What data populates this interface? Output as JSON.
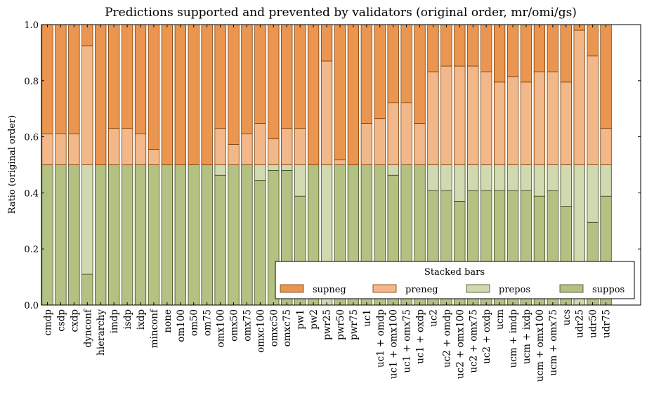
{
  "chart_data": {
    "type": "bar",
    "stacked": true,
    "title": "Predictions supported and prevented by validators (original order, mr/omi/gs)",
    "xlabel": "",
    "ylabel": "Ratio (original order)",
    "ylim": [
      0,
      1
    ],
    "yticks": [
      "0.0",
      "0.2",
      "0.4",
      "0.6",
      "0.8",
      "1.0"
    ],
    "grid": false,
    "legend": {
      "title": "Stacked bars",
      "placement": "bottom-right",
      "entries": [
        "supneg",
        "preneg",
        "prepos",
        "suppos"
      ]
    },
    "categories": [
      "cmdp",
      "csdp",
      "cxdp",
      "dynconf",
      "hierarchy",
      "imdp",
      "isdp",
      "ixdp",
      "minconf",
      "none",
      "om100",
      "om50",
      "om75",
      "omx100",
      "omx50",
      "omx75",
      "omxc100",
      "omxc50",
      "omxc75",
      "pw1",
      "pw2",
      "pwr25",
      "pwr50",
      "pwr75",
      "uc1",
      "uc1 + omdp",
      "uc1 + omx100",
      "uc1 + omx75",
      "uc1 + oxdp",
      "uc2",
      "uc2 + omdp",
      "uc2 + omx100",
      "uc2 + omx75",
      "uc2 + oxdp",
      "ucm",
      "ucm + imdp",
      "ucm + ixdp",
      "ucm + omx100",
      "ucm + omx75",
      "ucs",
      "udr25",
      "udr50",
      "udr75"
    ],
    "series": [
      {
        "name": "suppos",
        "color": "#B3C282",
        "edge": "#3f4a1f",
        "values": [
          0.5,
          0.5,
          0.5,
          0.11,
          0.5,
          0.5,
          0.5,
          0.5,
          0.5,
          0.5,
          0.5,
          0.5,
          0.5,
          0.463,
          0.5,
          0.5,
          0.445,
          0.48,
          0.48,
          0.388,
          0.5,
          0,
          0.5,
          0.5,
          0.5,
          0.5,
          0.463,
          0.5,
          0.5,
          0.408,
          0.408,
          0.37,
          0.408,
          0.408,
          0.408,
          0.408,
          0.408,
          0.388,
          0.408,
          0.352,
          0,
          0.295,
          0.388
        ]
      },
      {
        "name": "prepos",
        "color": "#D0D9B0",
        "edge": "#3f4a1f",
        "values": [
          0,
          0,
          0,
          0.39,
          0,
          0,
          0,
          0,
          0,
          0,
          0,
          0,
          0,
          0.037,
          0,
          0,
          0.055,
          0.02,
          0.02,
          0.112,
          0,
          0.5,
          0,
          0,
          0,
          0,
          0.037,
          0,
          0,
          0.092,
          0.092,
          0.13,
          0.092,
          0.092,
          0.092,
          0.092,
          0.092,
          0.112,
          0.092,
          0.148,
          0.5,
          0.205,
          0.112
        ]
      },
      {
        "name": "preneg",
        "color": "#F2B88A",
        "edge": "#7a3a00",
        "values": [
          0.11,
          0.11,
          0.11,
          0.425,
          0,
          0.13,
          0.13,
          0.11,
          0.055,
          0,
          0,
          0,
          0,
          0.13,
          0.073,
          0.11,
          0.148,
          0.093,
          0.13,
          0.13,
          0,
          0.37,
          0.018,
          0,
          0.148,
          0.165,
          0.222,
          0.222,
          0.148,
          0.332,
          0.352,
          0.352,
          0.352,
          0.332,
          0.295,
          0.315,
          0.295,
          0.332,
          0.332,
          0.295,
          0.48,
          0.388,
          0.13
        ]
      },
      {
        "name": "supneg",
        "color": "#EB9650",
        "edge": "#7a3a00",
        "values": [
          0.39,
          0.39,
          0.39,
          0.075,
          0.5,
          0.37,
          0.37,
          0.39,
          0.445,
          0.5,
          0.5,
          0.5,
          0.5,
          0.37,
          0.427,
          0.39,
          0.352,
          0.407,
          0.37,
          0.37,
          0.5,
          0.13,
          0.482,
          0.5,
          0.352,
          0.335,
          0.278,
          0.278,
          0.352,
          0.168,
          0.148,
          0.148,
          0.148,
          0.168,
          0.205,
          0.185,
          0.205,
          0.168,
          0.168,
          0.205,
          0.02,
          0.112,
          0.37
        ]
      }
    ]
  }
}
